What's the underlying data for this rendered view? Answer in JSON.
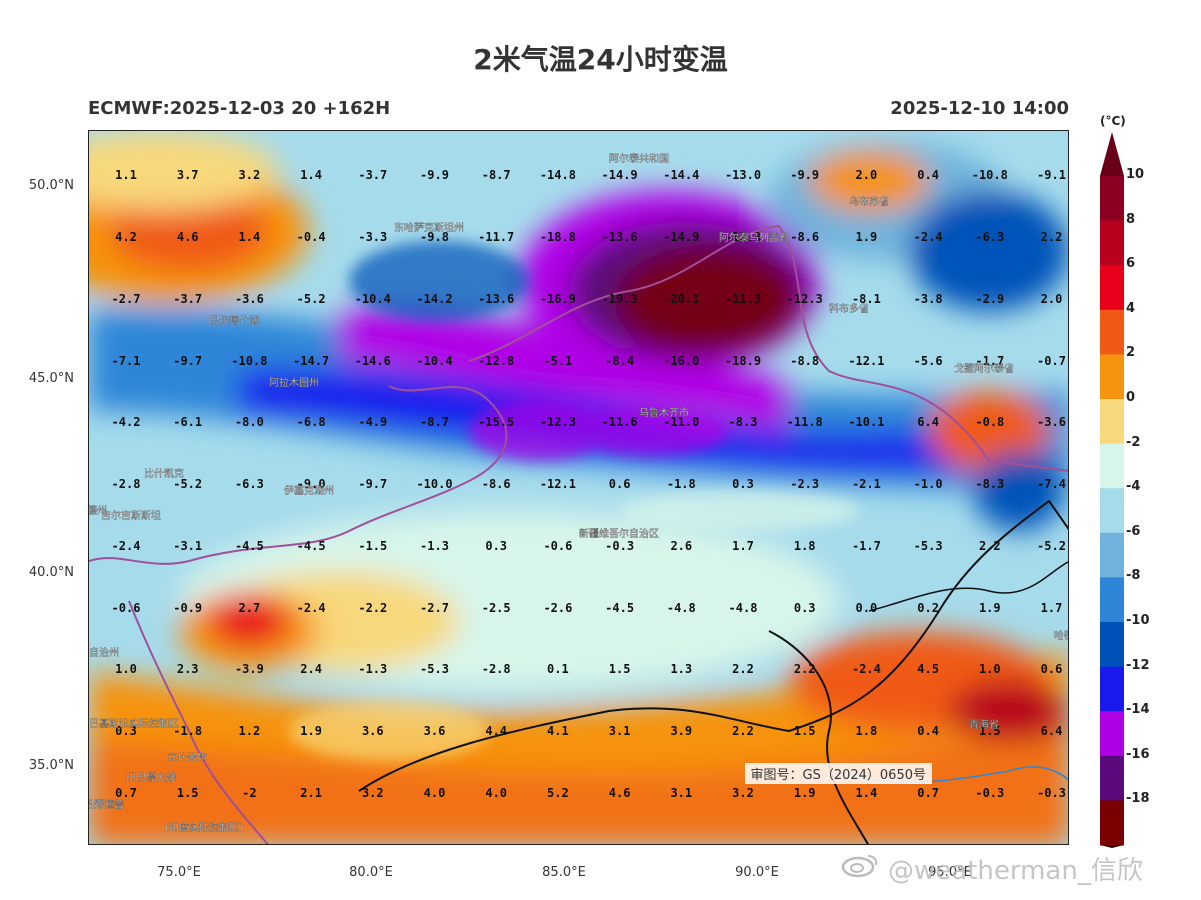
{
  "title": "2米气温24小时变温",
  "subtitle_left": "ECMWF:2025-12-03 20 +162H",
  "subtitle_right": "2025-12-10 14:00",
  "lat_labels": [
    "50.0°N",
    "45.0°N",
    "40.0°N",
    "35.0°N"
  ],
  "lon_labels": [
    "75.0°E",
    "80.0°E",
    "85.0°E",
    "90.0°E",
    "95.0°E"
  ],
  "approval_text": "审图号：GS（2024）0650号",
  "watermark": "@weatherman_信欣",
  "colorbar": {
    "unit": "(°C)",
    "labels": [
      "10",
      "8",
      "6",
      "4",
      "2",
      "0",
      "-2",
      "-4",
      "-6",
      "-8",
      "-10",
      "-12",
      "-14",
      "-16",
      "-18"
    ],
    "colors": [
      "#8b0021",
      "#b8001f",
      "#e8001a",
      "#f05a14",
      "#f6930f",
      "#f8d87c",
      "#d8f5ea",
      "#a6dbec",
      "#6fb3dc",
      "#2f86d8",
      "#0052b8",
      "#1a1aee",
      "#b000e6",
      "#5a0a7a",
      "#7a0000"
    ]
  },
  "place_labels": [
    "阿尔泰共和国",
    "乌布苏省",
    "东哈萨克斯坦州",
    "阿尔泰乌列盖省",
    "科布多省",
    "巴尔喀什湖",
    "阿拉木图州",
    "乌鲁木齐市",
    "戈壁阿尔泰省",
    "伊塞克湖州",
    "比什凯克",
    "吉尔吉斯斯坦",
    "德州",
    "新疆维吾尔自治区",
    "巴基斯坦实际控制区",
    "印巴停火线",
    "克什米尔",
    "(印度实际控制区)",
    "青海省",
    "哈密",
    "巴自治州",
    "巴旁遮普"
  ],
  "grid_values": [
    [
      "1.1",
      "3.7",
      "3.2",
      "1.4",
      "-3.7",
      "-9.9",
      "-8.7",
      "-14.8",
      "-14.9",
      "-14.4",
      "-13.0",
      "-9.9",
      "2.0",
      "0.4",
      "-10.8",
      "-9.1"
    ],
    [
      "4.2",
      "4.6",
      "1.4",
      "-0.4",
      "-3.3",
      "-9.8",
      "-11.7",
      "-18.8",
      "-13.6",
      "-14.9",
      "-12.8",
      "-8.6",
      "1.9",
      "-2.4",
      "-6.3",
      "2.2"
    ],
    [
      "-2.7",
      "-3.7",
      "-3.6",
      "-5.2",
      "-10.4",
      "-14.2",
      "-13.6",
      "-16.9",
      "-19.3",
      "-20.1",
      "-11.3",
      "-12.3",
      "-8.1",
      "-3.8",
      "-2.9",
      "2.0"
    ],
    [
      "-7.1",
      "-9.7",
      "-10.8",
      "-14.7",
      "-14.6",
      "-10.4",
      "-12.8",
      "-5.1",
      "-8.4",
      "-16.0",
      "-18.9",
      "-8.8",
      "-12.1",
      "-5.6",
      "-1.7",
      "-0.7"
    ],
    [
      "-4.2",
      "-6.1",
      "-8.0",
      "-6.8",
      "-4.9",
      "-8.7",
      "-15.5",
      "-12.3",
      "-11.6",
      "-11.0",
      "-8.3",
      "-11.8",
      "-10.1",
      "6.4",
      "-0.8",
      "-3.6"
    ],
    [
      "-2.8",
      "-5.2",
      "-6.3",
      "-9.0",
      "-9.7",
      "-10.0",
      "-8.6",
      "-12.1",
      "0.6",
      "-1.8",
      "0.3",
      "-2.3",
      "-2.1",
      "-1.0",
      "-8.3",
      "-7.4"
    ],
    [
      "-2.4",
      "-3.1",
      "-4.5",
      "-4.5",
      "-1.5",
      "-1.3",
      "0.3",
      "-0.6",
      "-0.3",
      "2.6",
      "1.7",
      "1.8",
      "-1.7",
      "-5.3",
      "2.2",
      "-5.2"
    ],
    [
      "-0.6",
      "-0.9",
      "2.7",
      "-2.4",
      "-2.2",
      "-2.7",
      "-2.5",
      "-2.6",
      "-4.5",
      "-4.8",
      "-4.8",
      "0.3",
      "0.0",
      "0.2",
      "1.9",
      "1.7"
    ],
    [
      "1.0",
      "2.3",
      "-3.9",
      "2.4",
      "-1.3",
      "-5.3",
      "-2.8",
      "0.1",
      "1.5",
      "1.3",
      "2.2",
      "2.2",
      "-2.4",
      "4.5",
      "1.0",
      "0.6"
    ],
    [
      "0.3",
      "-1.8",
      "1.2",
      "1.9",
      "3.6",
      "3.6",
      "4.4",
      "4.1",
      "3.1",
      "3.9",
      "2.2",
      "1.5",
      "1.8",
      "0.4",
      "1.5",
      "6.4"
    ],
    [
      "0.7",
      "1.5",
      "-2",
      "2.1",
      "3.2",
      "4.0",
      "4.0",
      "5.2",
      "4.6",
      "3.1",
      "3.2",
      "1.9",
      "1.4",
      "0.7",
      "-0.3",
      "-0.3"
    ]
  ]
}
